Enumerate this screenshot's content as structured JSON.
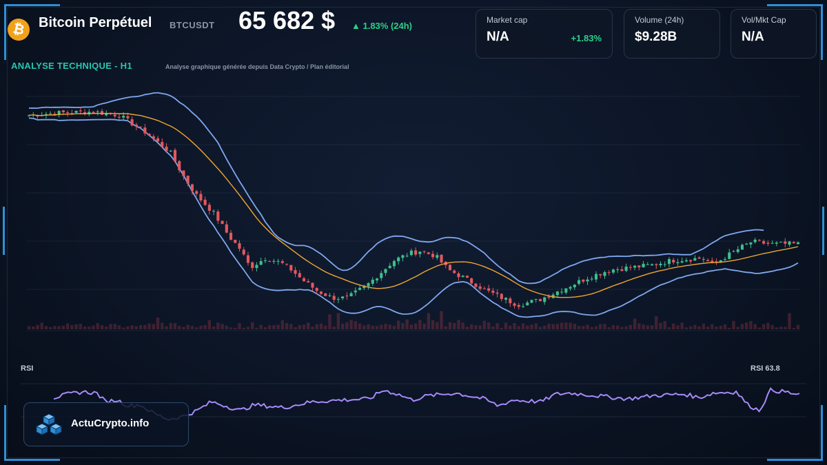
{
  "header": {
    "title": "Bitcoin Perpétuel",
    "ticker": "BTCUSDT",
    "price": "65 682 $",
    "change": "▲ 1.83% (24h)",
    "coin_icon": "bitcoin-icon",
    "coin_symbol": "₿"
  },
  "stats": [
    {
      "label": "Market cap",
      "value": "N/A",
      "sub": "+1.83%"
    },
    {
      "label": "Volume (24h)",
      "value": "$9.28B",
      "sub": ""
    },
    {
      "label": "Vol/Mkt Cap",
      "value": "N/A",
      "sub": ""
    }
  ],
  "section": {
    "title": "ANALYSE TECHNIQUE - H1",
    "subtitle": "Analyse graphique générée depuis Data Crypto / Plan éditorial"
  },
  "brand": {
    "name": "ActuCrypto.info",
    "icon": "cubes-logo-icon"
  },
  "colors": {
    "accent": "#27c7b0",
    "up": "#2bd18a",
    "candle_up": "#3fbf8c",
    "candle_down": "#e2585f",
    "ma": "#f0a830",
    "bollinger": "#7fa8ee",
    "rsi": "#a78bfa",
    "frame": "#2f8fd6"
  },
  "chart_data": [
    {
      "type": "candlestick",
      "title": "",
      "indicators": [
        "moving-average",
        "bollinger-bands",
        "volume"
      ],
      "grid": true,
      "x_count": 180,
      "ylim": [
        0,
        100
      ],
      "close_anchors": [
        [
          0,
          92
        ],
        [
          12,
          93
        ],
        [
          25,
          93.5
        ],
        [
          35,
          92
        ],
        [
          45,
          85
        ],
        [
          55,
          76
        ],
        [
          60,
          66
        ],
        [
          65,
          58
        ],
        [
          72,
          50
        ],
        [
          78,
          40
        ],
        [
          82,
          35
        ],
        [
          86,
          27
        ],
        [
          92,
          31
        ],
        [
          98,
          29
        ],
        [
          102,
          26
        ],
        [
          106,
          22
        ],
        [
          112,
          17
        ],
        [
          118,
          14
        ],
        [
          124,
          14
        ],
        [
          132,
          20
        ],
        [
          138,
          26
        ],
        [
          142,
          30
        ],
        [
          148,
          33
        ],
        [
          152,
          34
        ],
        [
          158,
          32
        ],
        [
          163,
          26
        ],
        [
          170,
          22
        ],
        [
          178,
          17
        ],
        [
          184,
          14
        ],
        [
          190,
          11
        ],
        [
          198,
          13
        ],
        [
          208,
          18
        ],
        [
          218,
          23
        ],
        [
          226,
          26
        ],
        [
          234,
          27
        ],
        [
          242,
          28
        ],
        [
          250,
          30
        ],
        [
          256,
          30.5
        ],
        [
          262,
          31
        ],
        [
          266,
          28
        ],
        [
          270,
          31
        ],
        [
          276,
          35
        ],
        [
          281,
          38
        ],
        [
          288,
          37
        ],
        [
          299,
          37
        ]
      ]
    },
    {
      "type": "line",
      "series": [
        {
          "name": "RSI",
          "values": []
        }
      ],
      "label": "RSI",
      "value_label": "RSI 63.8",
      "ylim": [
        0,
        100
      ],
      "anchors": [
        [
          0,
          62
        ],
        [
          5,
          68
        ],
        [
          10,
          72
        ],
        [
          15,
          70
        ],
        [
          18,
          55
        ],
        [
          22,
          58
        ],
        [
          26,
          48
        ],
        [
          30,
          50
        ],
        [
          35,
          35
        ],
        [
          40,
          25
        ],
        [
          45,
          30
        ],
        [
          50,
          40
        ],
        [
          55,
          55
        ],
        [
          60,
          48
        ],
        [
          65,
          40
        ],
        [
          70,
          50
        ],
        [
          80,
          45
        ],
        [
          90,
          55
        ],
        [
          100,
          58
        ],
        [
          110,
          60
        ],
        [
          115,
          75
        ],
        [
          120,
          68
        ],
        [
          125,
          58
        ],
        [
          130,
          65
        ],
        [
          140,
          70
        ],
        [
          150,
          60
        ],
        [
          155,
          48
        ],
        [
          160,
          58
        ],
        [
          170,
          55
        ],
        [
          175,
          68
        ],
        [
          180,
          70
        ],
        [
          190,
          65
        ],
        [
          200,
          60
        ],
        [
          210,
          66
        ],
        [
          220,
          68
        ],
        [
          225,
          62
        ],
        [
          230,
          70
        ],
        [
          238,
          72
        ],
        [
          242,
          50
        ],
        [
          246,
          40
        ],
        [
          250,
          75
        ],
        [
          255,
          72
        ],
        [
          260,
          66
        ]
      ]
    }
  ]
}
